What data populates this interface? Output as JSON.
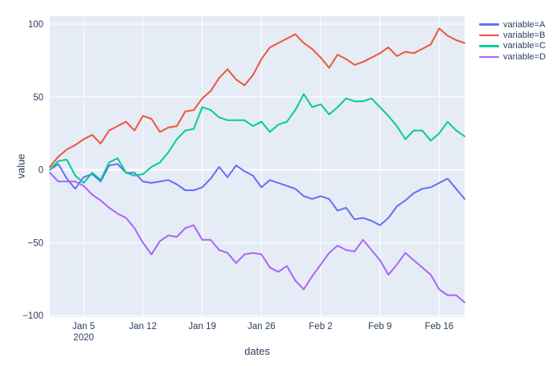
{
  "chart_data": {
    "type": "line",
    "title": "",
    "xlabel": "dates",
    "ylabel": "value",
    "plot_bg": "#E5ECF6",
    "grid_color": "#FFFFFF",
    "font_color": "#2A3F5F",
    "legend_position": "top-right",
    "grid": true,
    "x_start": "2020-01-01",
    "x_points": 50,
    "ylim": [
      -101,
      105.5
    ],
    "y_ticks": [
      100,
      50,
      0,
      -50,
      -100
    ],
    "x_ticks": [
      {
        "day": 4,
        "label": "Jan 5",
        "sub": "2020"
      },
      {
        "day": 11,
        "label": "Jan 12"
      },
      {
        "day": 18,
        "label": "Jan 19"
      },
      {
        "day": 25,
        "label": "Jan 26"
      },
      {
        "day": 32,
        "label": "Feb 2"
      },
      {
        "day": 39,
        "label": "Feb 9"
      },
      {
        "day": 46,
        "label": "Feb 16"
      }
    ],
    "series": [
      {
        "name": "variable=A",
        "color": "#636EFA",
        "values": [
          0,
          4,
          -6,
          -13,
          -5,
          -3,
          -8,
          3,
          4,
          -2,
          -2,
          -8,
          -9,
          -8,
          -7,
          -10,
          -14,
          -14,
          -12,
          -6,
          2,
          -5,
          3,
          -1,
          -4,
          -12,
          -7,
          -9,
          -11,
          -13,
          -18,
          -20,
          -18,
          -20,
          -28,
          -26,
          -34,
          -33,
          -35,
          -38,
          -33,
          -25,
          -21,
          -16,
          -13,
          -12,
          -9,
          -6,
          -13,
          -20
        ]
      },
      {
        "name": "variable=B",
        "color": "#EF553B",
        "values": [
          2,
          9,
          14,
          17,
          21,
          24,
          18,
          27,
          30,
          33,
          27,
          37,
          35,
          26,
          29,
          30,
          40,
          41,
          49,
          54,
          63,
          69,
          62,
          58,
          65,
          76,
          84,
          87,
          90,
          93,
          87,
          83,
          77,
          70,
          79,
          76,
          72,
          74,
          77,
          80,
          84,
          78,
          81,
          80,
          83,
          86,
          97,
          92,
          89,
          87
        ]
      },
      {
        "name": "variable=C",
        "color": "#00CC96",
        "values": [
          0,
          6,
          7,
          -4,
          -9,
          -2,
          -7,
          5,
          8,
          -2,
          -4,
          -3,
          2,
          5,
          12,
          21,
          27,
          28,
          43,
          41,
          36,
          34,
          34,
          34,
          30,
          33,
          26,
          31,
          33,
          41,
          52,
          43,
          45,
          38,
          43,
          49,
          47,
          47,
          49,
          43,
          37,
          30,
          21,
          27,
          27,
          20,
          25,
          33,
          27,
          23
        ]
      },
      {
        "name": "variable=D",
        "color": "#AB63FA",
        "values": [
          -2,
          -8,
          -8,
          -8,
          -11,
          -17,
          -21,
          -26,
          -30,
          -33,
          -40,
          -50,
          -58,
          -49,
          -45,
          -46,
          -40,
          -38,
          -48,
          -48,
          -55,
          -57,
          -64,
          -58,
          -57,
          -58,
          -67,
          -70,
          -66,
          -76,
          -82,
          -73,
          -65,
          -57,
          -52,
          -55,
          -56,
          -48,
          -55,
          -62,
          -72,
          -65,
          -57,
          -62,
          -67,
          -72,
          -82,
          -86,
          -86,
          -91
        ]
      }
    ]
  }
}
